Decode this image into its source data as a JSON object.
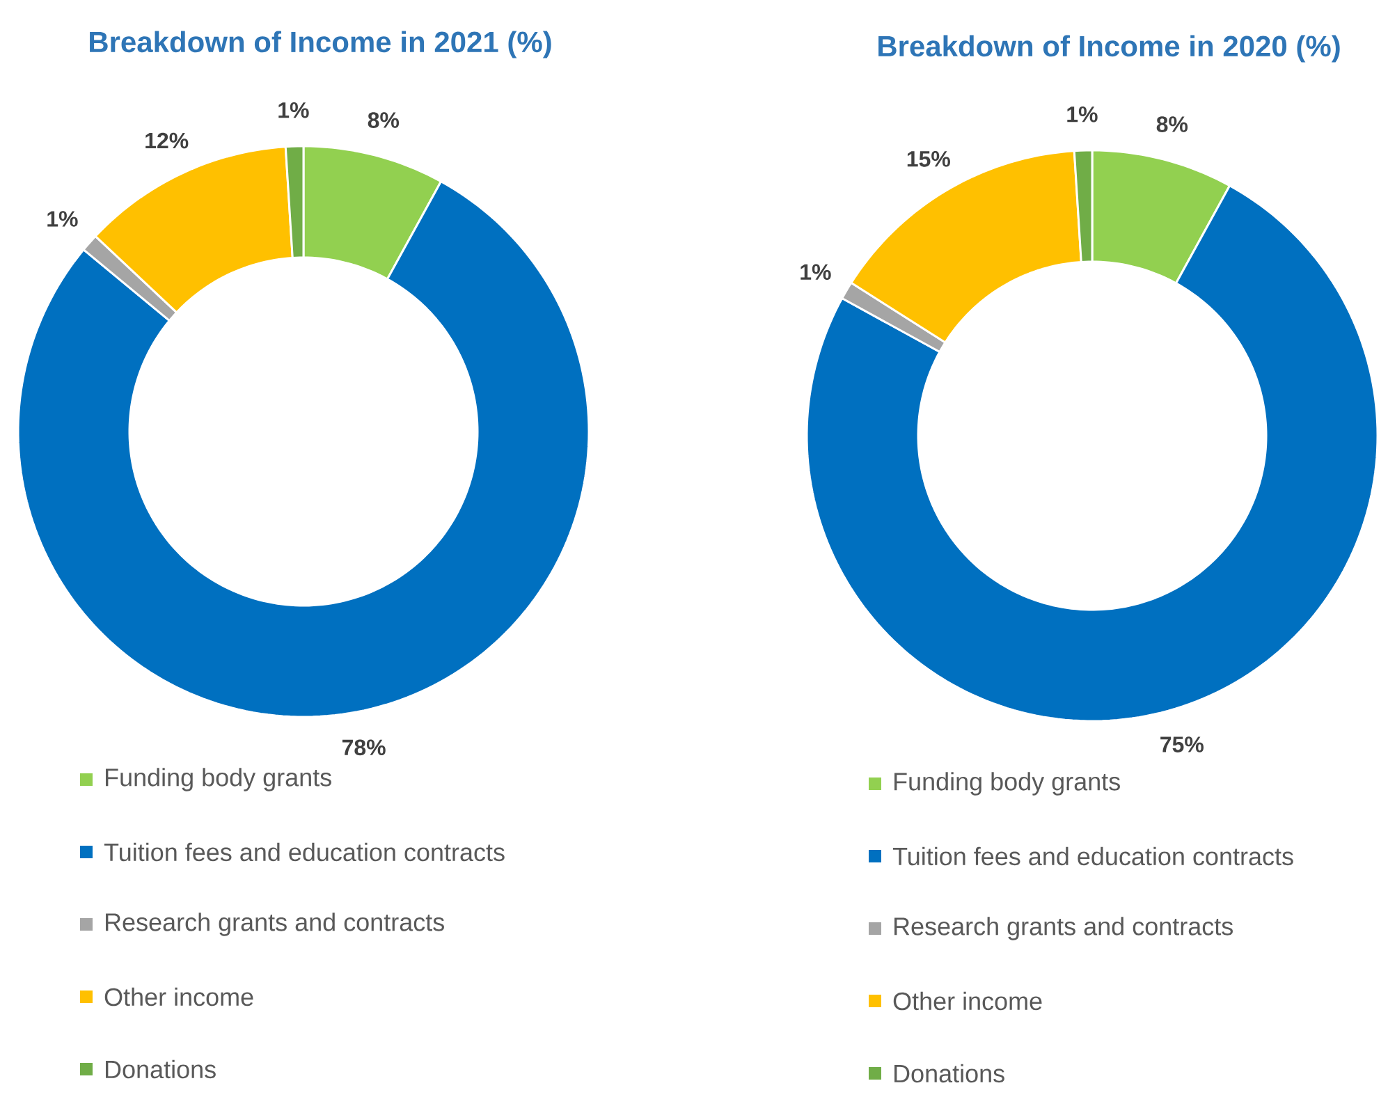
{
  "chart_data": [
    {
      "type": "donut",
      "title": "Breakdown of Income in 2021 (%)",
      "categories": [
        "Funding body grants",
        "Tuition fees and education contracts",
        "Research grants and contracts",
        "Other income",
        "Donations"
      ],
      "values": [
        8,
        78,
        1,
        12,
        1
      ],
      "value_labels": [
        "8%",
        "78%",
        "1%",
        "12%",
        "1%"
      ],
      "colors": [
        "#92d050",
        "#0070c0",
        "#a5a5a5",
        "#ffc000",
        "#70ad47"
      ],
      "legend": "bottom"
    },
    {
      "type": "donut",
      "title": "Breakdown of Income in 2020 (%)",
      "categories": [
        "Funding body grants",
        "Tuition fees and education contracts",
        "Research grants and contracts",
        "Other income",
        "Donations"
      ],
      "values": [
        8,
        75,
        1,
        15,
        1
      ],
      "value_labels": [
        "8%",
        "75%",
        "1%",
        "15%",
        "1%"
      ],
      "colors": [
        "#92d050",
        "#0070c0",
        "#a5a5a5",
        "#ffc000",
        "#70ad47"
      ],
      "legend": "bottom"
    }
  ]
}
